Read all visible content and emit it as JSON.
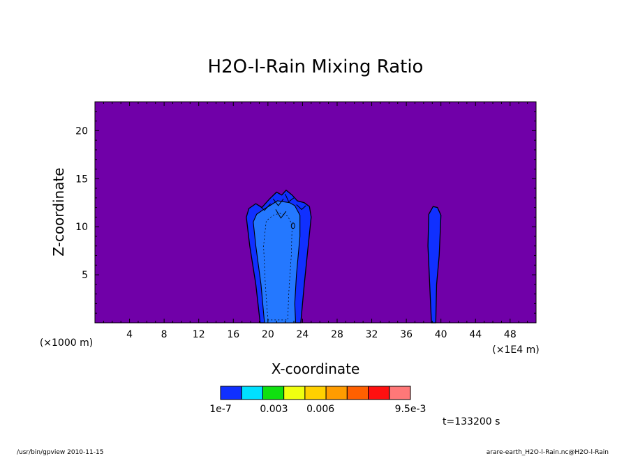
{
  "chart_data": {
    "type": "heatmap",
    "title": "H2O-l-Rain Mixing Ratio",
    "xlabel": "X-coordinate",
    "ylabel": "Z-coordinate",
    "x_unit": "(×1E4 m)",
    "y_unit": "(×1000 m)",
    "xlim": [
      0,
      51
    ],
    "ylim": [
      0,
      23
    ],
    "x_ticks": [
      4,
      8,
      12,
      16,
      20,
      24,
      28,
      32,
      36,
      40,
      44,
      48
    ],
    "y_ticks": [
      5,
      10,
      15,
      20
    ],
    "colorbar": {
      "labels": [
        "1e-7",
        "0.003",
        "0.006",
        "9.5e-3"
      ],
      "colors": [
        "#7000a8",
        "#1030ff",
        "#00e0ff",
        "#10e010",
        "#f0ff10",
        "#ffd000",
        "#ff9c00",
        "#ff6000",
        "#ff1010",
        "#ff7878"
      ]
    },
    "background_color": "#7000a8",
    "contour_colors": {
      "outer": "#1030ff",
      "core": "#2478ff",
      "line": "#000000"
    },
    "time_label": "t=133200 s",
    "features": [
      {
        "name": "main rain column",
        "x_range": [
          17.5,
          25
        ],
        "z_range": [
          0,
          13.8
        ]
      },
      {
        "name": "secondary rain column",
        "x_range": [
          38.5,
          40
        ],
        "z_range": [
          0,
          12.1
        ]
      }
    ]
  },
  "footer": {
    "left": "/usr/bin/gpview  2010-11-15",
    "right": "arare-earth_H2O-l-Rain.nc@H2O-l-Rain"
  }
}
